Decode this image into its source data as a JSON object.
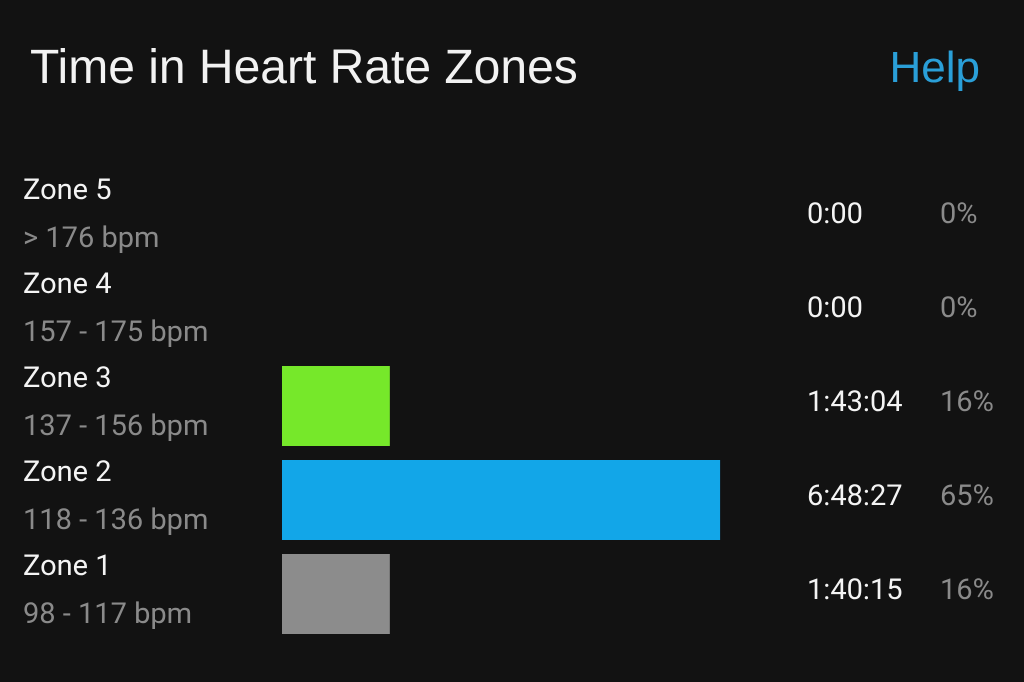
{
  "header": {
    "title": "Time in Heart Rate Zones",
    "help": "Help"
  },
  "zones": [
    {
      "name": "Zone 5",
      "range": "> 176 bpm",
      "time": "0:00",
      "percent": {
        "value": 0,
        "label": "0%"
      }
    },
    {
      "name": "Zone 4",
      "range": "157 - 175 bpm",
      "time": "0:00",
      "percent": {
        "value": 0,
        "label": "0%"
      }
    },
    {
      "name": "Zone 3",
      "range": "137 - 156 bpm",
      "time": "1:43:04",
      "percent": {
        "value": 16,
        "label": "16%"
      },
      "color": "#76e82a"
    },
    {
      "name": "Zone 2",
      "range": "118 - 136 bpm",
      "time": "6:48:27",
      "percent": {
        "value": 65,
        "label": "65%"
      },
      "color": "#12a6e8"
    },
    {
      "name": "Zone 1",
      "range": "98 - 117 bpm",
      "time": "1:40:15",
      "percent": {
        "value": 16,
        "label": "16%"
      },
      "color": "#8c8c8c"
    }
  ]
}
